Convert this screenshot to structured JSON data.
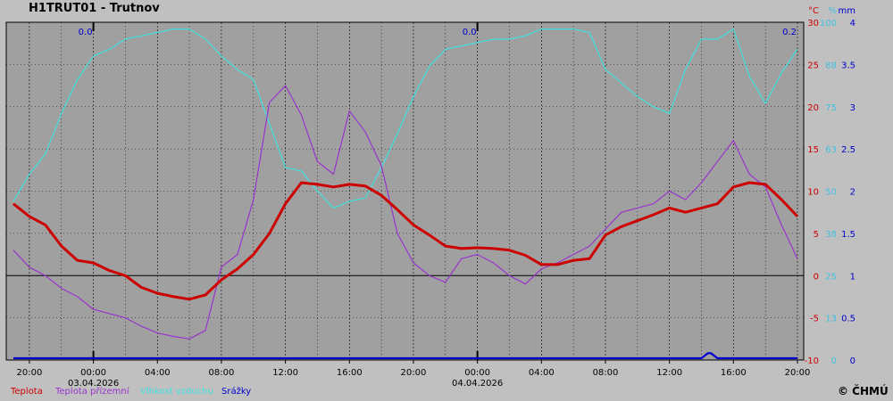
{
  "title": "H1TRUT01 - Trutnov",
  "copyright": "© ČHMÚ",
  "colors": {
    "temperature": "#cc0000",
    "ground_temperature": "#9933cc",
    "humidity": "#40e0e0",
    "precipitation": "#0000cc",
    "background": "#a0a0a0",
    "grid": "#000000"
  },
  "chart_data": {
    "type": "line",
    "x_unit": "hours since 02.04.2026 19:00",
    "xlim": [
      0,
      49
    ],
    "x_ticks": [
      {
        "label": "20:00",
        "date": ""
      },
      {
        "label": "00:00",
        "date": "03.04.2026"
      },
      {
        "label": "04:00",
        "date": ""
      },
      {
        "label": "08:00",
        "date": ""
      },
      {
        "label": "12:00",
        "date": ""
      },
      {
        "label": "16:00",
        "date": ""
      },
      {
        "label": "20:00",
        "date": ""
      },
      {
        "label": "00:00",
        "date": "04.04.2026"
      },
      {
        "label": "04:00",
        "date": ""
      },
      {
        "label": "08:00",
        "date": ""
      },
      {
        "label": "12:00",
        "date": ""
      },
      {
        "label": "16:00",
        "date": ""
      },
      {
        "label": "20:00",
        "date": ""
      }
    ],
    "axes": {
      "temperature": {
        "unit": "°C",
        "ylim": [
          -10,
          30
        ],
        "ticks": [
          "30",
          "25",
          "20",
          "15",
          "10",
          "5",
          "0",
          "-5",
          "-10"
        ]
      },
      "humidity": {
        "unit": "%",
        "ylim": [
          0,
          100
        ],
        "ticks": [
          "100",
          "88",
          "75",
          "63",
          "50",
          "38",
          "25",
          "13",
          "0"
        ]
      },
      "precipitation": {
        "unit": "mm",
        "ylim": [
          0,
          4
        ],
        "ticks": [
          "4",
          "3.5",
          "3",
          "2.5",
          "2",
          "1.5",
          "1",
          "0.5",
          "0"
        ]
      }
    },
    "precip_totals": [
      {
        "x": 4.5,
        "label": "0.0"
      },
      {
        "x": 28.5,
        "label": "0.0"
      },
      {
        "x": 48.5,
        "label": "0.2"
      }
    ],
    "series": [
      {
        "name": "Teplota",
        "axis": "temperature",
        "x": [
          0,
          1,
          2,
          3,
          4,
          5,
          6,
          7,
          8,
          9,
          10,
          11,
          12,
          13,
          14,
          15,
          16,
          17,
          18,
          19,
          20,
          21,
          22,
          23,
          24,
          25,
          26,
          27,
          28,
          29,
          30,
          31,
          32,
          33,
          34,
          35,
          36,
          37,
          38,
          39,
          40,
          41,
          42,
          43,
          44,
          45,
          46,
          47,
          48,
          49
        ],
        "y": [
          8.5,
          7,
          6,
          3.5,
          1.8,
          1.5,
          0.6,
          0,
          -1.4,
          -2.1,
          -2.5,
          -2.8,
          -2.3,
          -0.5,
          0.8,
          2.5,
          5,
          8.5,
          11,
          10.8,
          10.5,
          10.8,
          10.6,
          9.5,
          7.8,
          6,
          4.8,
          3.5,
          3.2,
          3.3,
          3.2,
          3,
          2.4,
          1.3,
          1.3,
          1.8,
          2,
          4.8,
          5.8,
          6.5,
          7.2,
          8,
          7.5,
          8,
          8.5,
          10.5,
          11,
          10.8,
          9,
          7
        ]
      },
      {
        "name": "Teplota přízemní",
        "axis": "temperature",
        "x": [
          0,
          1,
          2,
          3,
          4,
          5,
          6,
          7,
          8,
          9,
          10,
          11,
          12,
          13,
          14,
          15,
          16,
          17,
          18,
          19,
          20,
          21,
          22,
          23,
          24,
          25,
          26,
          27,
          28,
          29,
          30,
          31,
          32,
          33,
          34,
          35,
          36,
          37,
          38,
          39,
          40,
          41,
          42,
          43,
          44,
          45,
          46,
          47,
          48,
          49
        ],
        "y": [
          3,
          1,
          0,
          -1.5,
          -2.5,
          -4,
          -4.5,
          -5,
          -6,
          -6.8,
          -7.2,
          -7.5,
          -6.5,
          1,
          2.5,
          9,
          20.5,
          22.5,
          19,
          13.5,
          12,
          19.5,
          17,
          13,
          5,
          1.5,
          0,
          -0.8,
          2,
          2.5,
          1.5,
          0,
          -1,
          0.8,
          1.5,
          2.5,
          3.5,
          5.5,
          7.5,
          8,
          8.5,
          10,
          9,
          11,
          13.5,
          16,
          12,
          10.5,
          6,
          2
        ]
      },
      {
        "name": "Vlhkost vzduchu",
        "axis": "humidity",
        "x": [
          0,
          1,
          2,
          3,
          4,
          5,
          6,
          7,
          8,
          9,
          10,
          11,
          12,
          13,
          14,
          15,
          16,
          17,
          18,
          19,
          20,
          21,
          22,
          23,
          24,
          25,
          26,
          27,
          28,
          29,
          30,
          31,
          32,
          33,
          34,
          35,
          36,
          37,
          38,
          39,
          40,
          41,
          42,
          43,
          44,
          45,
          46,
          47,
          48,
          49
        ],
        "y": [
          47,
          55,
          61,
          73,
          83,
          90,
          92,
          95,
          96,
          97,
          98,
          98,
          95,
          90,
          86,
          83,
          70,
          57,
          56,
          50,
          45,
          47,
          48,
          57,
          67,
          78,
          87,
          92,
          93,
          94,
          95,
          95,
          96,
          98,
          98,
          98,
          97,
          86,
          82,
          78,
          75,
          73,
          86,
          95,
          95,
          98,
          84,
          76,
          85,
          92
        ]
      },
      {
        "name": "Srážky",
        "axis": "precipitation",
        "x": [
          0,
          43,
          43.4,
          43.6,
          44,
          49
        ],
        "y": [
          0,
          0,
          0.08,
          0.08,
          0,
          0
        ]
      }
    ]
  },
  "legend": [
    "Teplota",
    "Teplota přízemní",
    "Vlhkost vzduchu",
    "Srážky"
  ]
}
